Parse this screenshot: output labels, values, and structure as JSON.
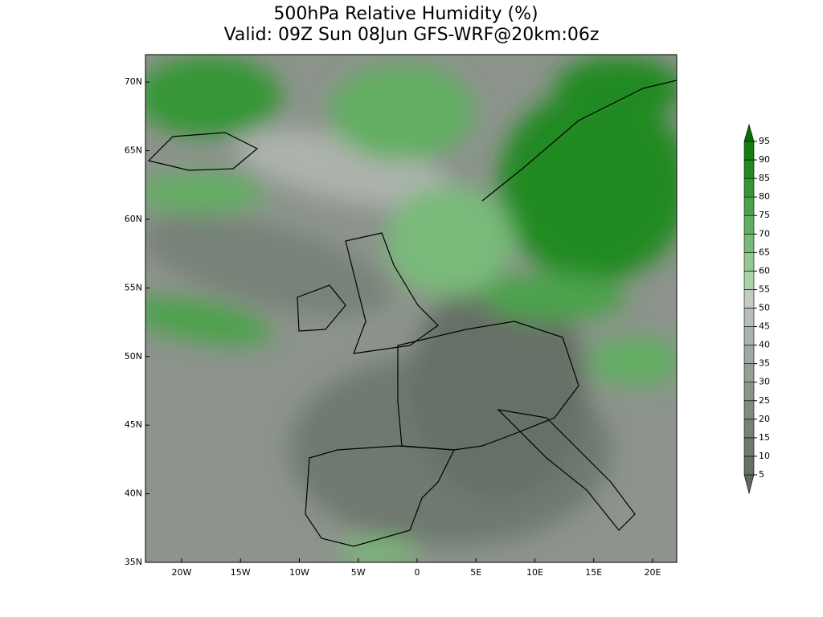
{
  "chart_data": {
    "type": "map",
    "title": "500hPa Relative Humidity (%)",
    "subtitle": "Valid: 09Z Sun 08Jun GFS-WRF@20km:06z",
    "xlim": [
      -23.07,
      22.05
    ],
    "ylim": [
      35,
      72
    ],
    "xticks": [
      {
        "value": -20,
        "label": "20W"
      },
      {
        "value": -15,
        "label": "15W"
      },
      {
        "value": -10,
        "label": "10W"
      },
      {
        "value": -5,
        "label": "5W"
      },
      0,
      {
        "value": 5,
        "label": "5E"
      },
      {
        "value": 10,
        "label": "10E"
      },
      {
        "value": 15,
        "label": "15E"
      },
      {
        "value": 20,
        "label": "20E"
      }
    ],
    "yticks": [
      {
        "value": 35,
        "label": "35N"
      },
      {
        "value": 40,
        "label": "40N"
      },
      {
        "value": 45,
        "label": "45N"
      },
      {
        "value": 50,
        "label": "50N"
      },
      {
        "value": 55,
        "label": "55N"
      },
      {
        "value": 60,
        "label": "60N"
      },
      {
        "value": 65,
        "label": "65N"
      },
      {
        "value": 70,
        "label": "70N"
      }
    ],
    "colorbar": {
      "levels": [
        5,
        10,
        15,
        20,
        25,
        30,
        35,
        40,
        45,
        50,
        55,
        60,
        65,
        70,
        75,
        80,
        85,
        90,
        95
      ],
      "colors": [
        "#5e685e",
        "#667066",
        "#6f796f",
        "#788278",
        "#828b82",
        "#8c948c",
        "#969e96",
        "#a1a8a1",
        "#acb2ac",
        "#b8beb8",
        "#c5cac5",
        "#a9d3a9",
        "#91c791",
        "#79ba79",
        "#62ae62",
        "#4ca24c",
        "#369636",
        "#228a22",
        "#127e12",
        "#037003"
      ]
    }
  }
}
